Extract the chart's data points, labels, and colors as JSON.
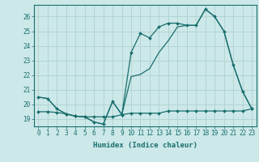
{
  "title": "",
  "xlabel": "Humidex (Indice chaleur)",
  "xlim": [
    -0.5,
    23.5
  ],
  "ylim": [
    18.5,
    26.8
  ],
  "yticks": [
    19,
    20,
    21,
    22,
    23,
    24,
    25,
    26
  ],
  "xticks": [
    0,
    1,
    2,
    3,
    4,
    5,
    6,
    7,
    8,
    9,
    10,
    11,
    12,
    13,
    14,
    15,
    16,
    17,
    18,
    19,
    20,
    21,
    22,
    23
  ],
  "bg_color": "#cce8e8",
  "grid_color": "#aacccc",
  "line_color": "#1a6e6e",
  "line1_y": [
    20.5,
    20.4,
    19.7,
    19.35,
    19.2,
    19.15,
    18.8,
    18.65,
    20.2,
    19.3,
    23.55,
    24.85,
    24.55,
    25.3,
    25.55,
    25.55,
    25.4,
    25.4,
    26.5,
    26.0,
    25.0,
    22.7,
    20.9,
    19.7
  ],
  "line2_y": [
    20.5,
    20.4,
    19.7,
    19.35,
    19.2,
    19.15,
    18.8,
    18.65,
    20.2,
    19.3,
    21.9,
    22.05,
    22.45,
    23.55,
    24.35,
    25.3,
    25.4,
    25.4,
    26.5,
    26.0,
    25.0,
    22.7,
    20.9,
    19.7
  ],
  "line3_y": [
    19.5,
    19.5,
    19.45,
    19.35,
    19.2,
    19.15,
    19.15,
    19.15,
    19.15,
    19.3,
    19.4,
    19.4,
    19.4,
    19.4,
    19.55,
    19.55,
    19.55,
    19.55,
    19.55,
    19.55,
    19.55,
    19.55,
    19.55,
    19.7
  ],
  "marker_size": 2.0,
  "line_width": 0.9,
  "tick_fontsize": 5.5,
  "xlabel_fontsize": 6.5
}
